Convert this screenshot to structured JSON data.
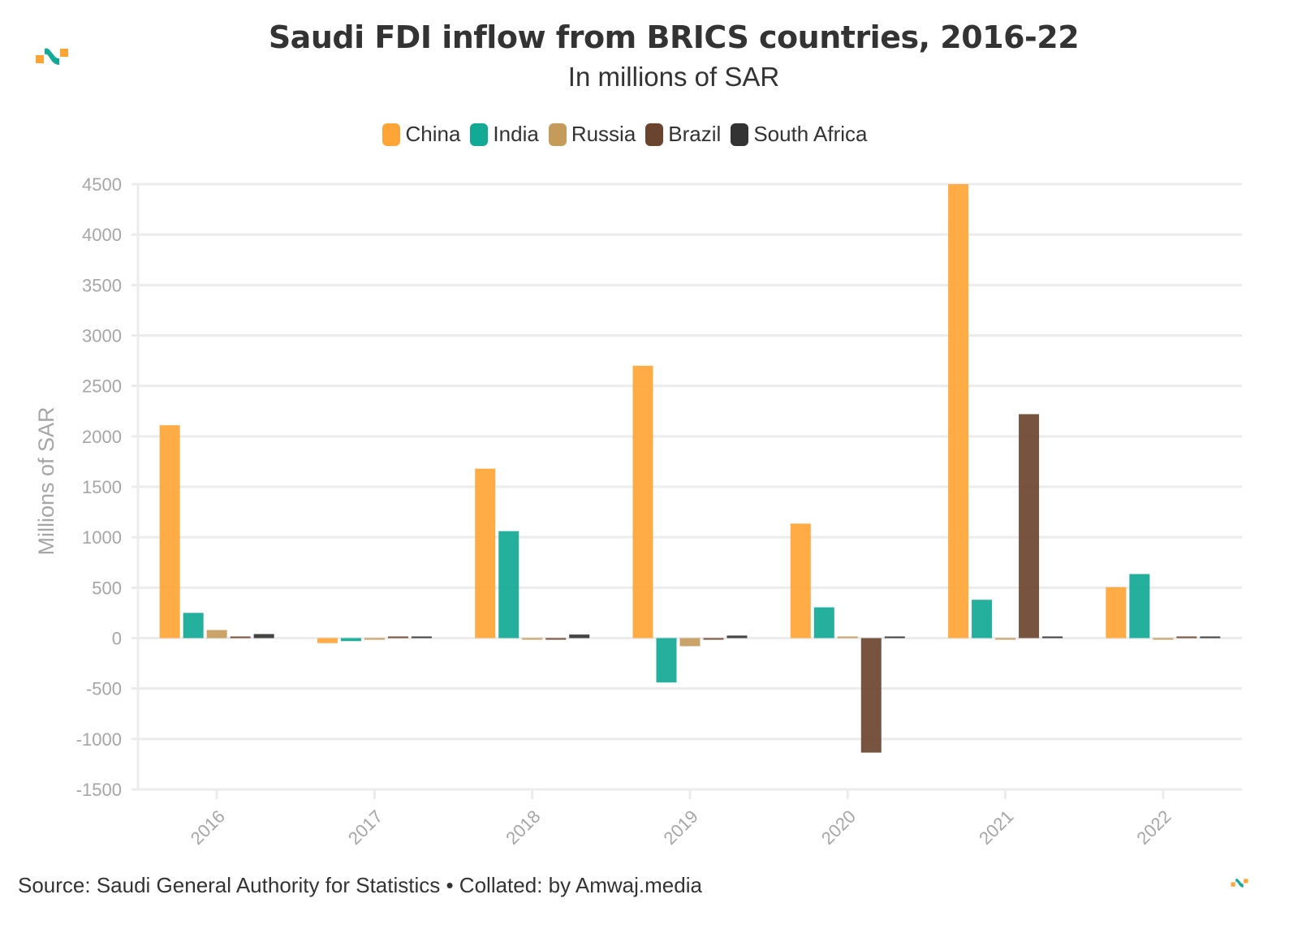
{
  "title": "Saudi FDI inflow from BRICS countries, 2016-22",
  "subtitle": "In millions of SAR",
  "footer": {
    "text": "Source: Saudi General Authority for Statistics • Collated: by Amwaj.media"
  },
  "logo_icon": "amwaj-logo-icon",
  "colors": {
    "China": "#ffa537",
    "India": "#12a995",
    "Russia": "#c49b5b",
    "Brazil": "#6b4430",
    "South Africa": "#333333",
    "grid": "#ececec",
    "tick_label": "#a6a6a6"
  },
  "chart_data": {
    "type": "bar",
    "title": "Saudi FDI inflow from BRICS countries, 2016-22",
    "subtitle": "In millions of SAR",
    "xlabel": "",
    "ylabel": "Millions of SAR",
    "ylim": [
      -1500,
      4500
    ],
    "yticks": [
      4500,
      4000,
      3500,
      3000,
      2500,
      2000,
      1500,
      1000,
      500,
      0,
      -500,
      -1000,
      -1500
    ],
    "grid": true,
    "legend_position": "top-center",
    "categories": [
      "2016",
      "2017",
      "2018",
      "2019",
      "2020",
      "2021",
      "2022"
    ],
    "series": [
      {
        "name": "China",
        "values": [
          2110,
          -50,
          1680,
          2700,
          1135,
          4500,
          505
        ]
      },
      {
        "name": "India",
        "values": [
          250,
          -30,
          1060,
          -440,
          305,
          380,
          635
        ]
      },
      {
        "name": "Russia",
        "values": [
          80,
          -5,
          -10,
          -80,
          0,
          -5,
          -5
        ]
      },
      {
        "name": "Brazil",
        "values": [
          0,
          0,
          -5,
          -10,
          -1135,
          2220,
          0
        ]
      },
      {
        "name": "South Africa",
        "values": [
          40,
          5,
          35,
          25,
          15,
          15,
          15
        ]
      }
    ]
  }
}
